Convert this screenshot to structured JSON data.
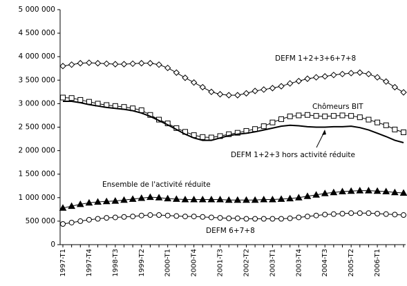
{
  "chart_data": {
    "type": "line",
    "categories": [
      "1997-T1",
      null,
      null,
      "1997-T4",
      null,
      null,
      "1998-T3",
      null,
      null,
      "1999-T2",
      null,
      null,
      "2000-T1",
      null,
      null,
      "2000-T4",
      null,
      null,
      "2001-T3",
      null,
      null,
      "2002-T2",
      null,
      null,
      "2003-T1",
      null,
      null,
      "2003-T4",
      null,
      null,
      "2004-T3",
      null,
      null,
      "2005-T2",
      null,
      null,
      "2006-T1",
      null,
      null,
      null
    ],
    "ylim": [
      0,
      5000000
    ],
    "yticks": [
      0,
      {
        "value": 500000,
        "label": "500 000"
      },
      {
        "value": 1000000,
        "label": "1 000 000"
      },
      {
        "value": 1500000,
        "label": "1 500 000"
      },
      {
        "value": 2000000,
        "label": "2 000 000"
      },
      {
        "value": 2500000,
        "label": "2 500 000"
      },
      {
        "value": 3000000,
        "label": "3 000 000"
      },
      {
        "value": 3500000,
        "label": "3 500 000"
      },
      {
        "value": 4000000,
        "label": "4 000 000"
      },
      {
        "value": 4500000,
        "label": "4 500 000"
      },
      {
        "value": 5000000,
        "label": "5 000 000"
      }
    ],
    "grid": false,
    "series": [
      {
        "name": "DEFM 1+2+3+6+7+8",
        "color": "#000000",
        "marker": "diamond",
        "values": [
          3800000,
          3830000,
          3860000,
          3870000,
          3860000,
          3850000,
          3840000,
          3840000,
          3850000,
          3860000,
          3860000,
          3830000,
          3760000,
          3660000,
          3550000,
          3450000,
          3350000,
          3250000,
          3200000,
          3180000,
          3180000,
          3220000,
          3270000,
          3300000,
          3330000,
          3370000,
          3430000,
          3480000,
          3530000,
          3560000,
          3580000,
          3610000,
          3630000,
          3650000,
          3660000,
          3630000,
          3560000,
          3470000,
          3350000,
          3240000
        ]
      },
      {
        "name": "Chômeurs BIT",
        "color": "#000000",
        "marker": "square",
        "values": [
          3130000,
          3120000,
          3080000,
          3040000,
          3000000,
          2970000,
          2950000,
          2930000,
          2900000,
          2860000,
          2760000,
          2660000,
          2580000,
          2480000,
          2400000,
          2330000,
          2290000,
          2280000,
          2310000,
          2350000,
          2380000,
          2420000,
          2460000,
          2520000,
          2600000,
          2670000,
          2730000,
          2750000,
          2760000,
          2740000,
          2730000,
          2740000,
          2750000,
          2740000,
          2710000,
          2660000,
          2600000,
          2540000,
          2450000,
          2390000
        ]
      },
      {
        "name": "DEFM 1+2+3 hors activité réduite",
        "color": "#000000",
        "marker": "none",
        "values": [
          3050000,
          3050000,
          3020000,
          2980000,
          2950000,
          2920000,
          2900000,
          2880000,
          2850000,
          2800000,
          2730000,
          2640000,
          2550000,
          2450000,
          2350000,
          2270000,
          2220000,
          2220000,
          2270000,
          2320000,
          2350000,
          2370000,
          2400000,
          2440000,
          2480000,
          2520000,
          2540000,
          2530000,
          2510000,
          2500000,
          2500000,
          2510000,
          2510000,
          2520000,
          2490000,
          2440000,
          2370000,
          2300000,
          2220000,
          2170000
        ]
      },
      {
        "name": "Ensemble de l'activité réduite",
        "color": "#000000",
        "marker": "triangle",
        "values": [
          780000,
          820000,
          860000,
          890000,
          910000,
          920000,
          930000,
          950000,
          970000,
          990000,
          1010000,
          1000000,
          980000,
          970000,
          960000,
          960000,
          960000,
          960000,
          960000,
          950000,
          950000,
          950000,
          950000,
          960000,
          960000,
          970000,
          980000,
          1000000,
          1030000,
          1060000,
          1090000,
          1110000,
          1130000,
          1140000,
          1150000,
          1150000,
          1140000,
          1130000,
          1110000,
          1100000
        ]
      },
      {
        "name": "DEFM 6+7+8",
        "color": "#000000",
        "marker": "circle",
        "values": [
          440000,
          470000,
          500000,
          530000,
          550000,
          570000,
          580000,
          590000,
          600000,
          620000,
          630000,
          630000,
          620000,
          610000,
          600000,
          600000,
          590000,
          580000,
          570000,
          560000,
          560000,
          550000,
          550000,
          550000,
          550000,
          550000,
          560000,
          580000,
          600000,
          620000,
          640000,
          650000,
          660000,
          670000,
          670000,
          670000,
          660000,
          650000,
          640000,
          630000
        ]
      }
    ]
  }
}
